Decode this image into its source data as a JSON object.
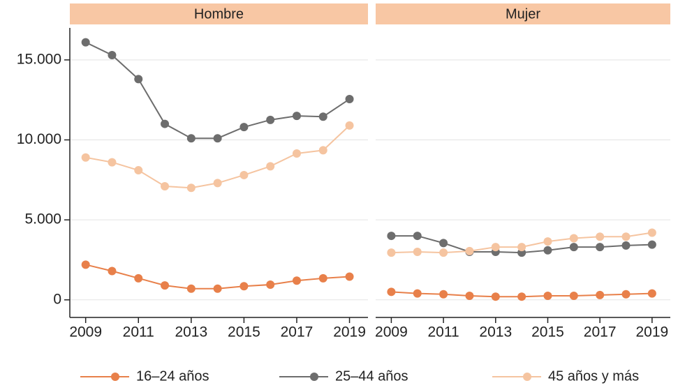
{
  "chart_data": [
    {
      "type": "line",
      "title": "Hombre",
      "x": [
        2009,
        2010,
        2011,
        2012,
        2013,
        2014,
        2015,
        2016,
        2017,
        2018,
        2019
      ],
      "xlim": [
        2008.4,
        2019.7
      ],
      "xticks": [
        2009,
        2011,
        2013,
        2015,
        2017,
        2019
      ],
      "ylim": [
        -1100,
        17000
      ],
      "yticks": [
        0,
        {
          "value": 5000,
          "label": "5.000"
        },
        {
          "value": 10000,
          "label": "10.000"
        },
        {
          "value": 15000,
          "label": "15.000"
        }
      ],
      "grid": true,
      "series": [
        {
          "name": "16–24 años",
          "color": "#e8804a",
          "values": [
            2200,
            1800,
            1350,
            900,
            700,
            700,
            850,
            950,
            1200,
            1350,
            1450
          ]
        },
        {
          "name": "25–44 años",
          "color": "#6d6d6d",
          "values": [
            16100,
            15300,
            13800,
            11000,
            10100,
            10100,
            10800,
            11250,
            11500,
            11450,
            12550
          ]
        },
        {
          "name": "45 años y más",
          "color": "#f5c4a0",
          "values": [
            8900,
            8600,
            8100,
            7100,
            7000,
            7300,
            7800,
            8350,
            9150,
            9350,
            10900
          ]
        }
      ]
    },
    {
      "type": "line",
      "title": "Mujer",
      "x": [
        2009,
        2010,
        2011,
        2012,
        2013,
        2014,
        2015,
        2016,
        2017,
        2018,
        2019
      ],
      "xlim": [
        2008.4,
        2019.7
      ],
      "xticks": [
        2009,
        2011,
        2013,
        2015,
        2017,
        2019
      ],
      "ylim": [
        -1100,
        17000
      ],
      "yticks": [
        0,
        {
          "value": 5000,
          "label": "5.000"
        },
        {
          "value": 10000,
          "label": "10.000"
        },
        {
          "value": 15000,
          "label": "15.000"
        }
      ],
      "grid": true,
      "series": [
        {
          "name": "16–24 años",
          "color": "#e8804a",
          "values": [
            500,
            400,
            350,
            250,
            200,
            200,
            250,
            250,
            300,
            350,
            400
          ]
        },
        {
          "name": "25–44 años",
          "color": "#6d6d6d",
          "values": [
            4000,
            4000,
            3550,
            3000,
            3000,
            2950,
            3100,
            3300,
            3300,
            3400,
            3450
          ]
        },
        {
          "name": "45 años y más",
          "color": "#f5c4a0",
          "values": [
            2950,
            3000,
            2950,
            3050,
            3300,
            3300,
            3650,
            3850,
            3950,
            3950,
            4200
          ]
        }
      ]
    }
  ]
}
